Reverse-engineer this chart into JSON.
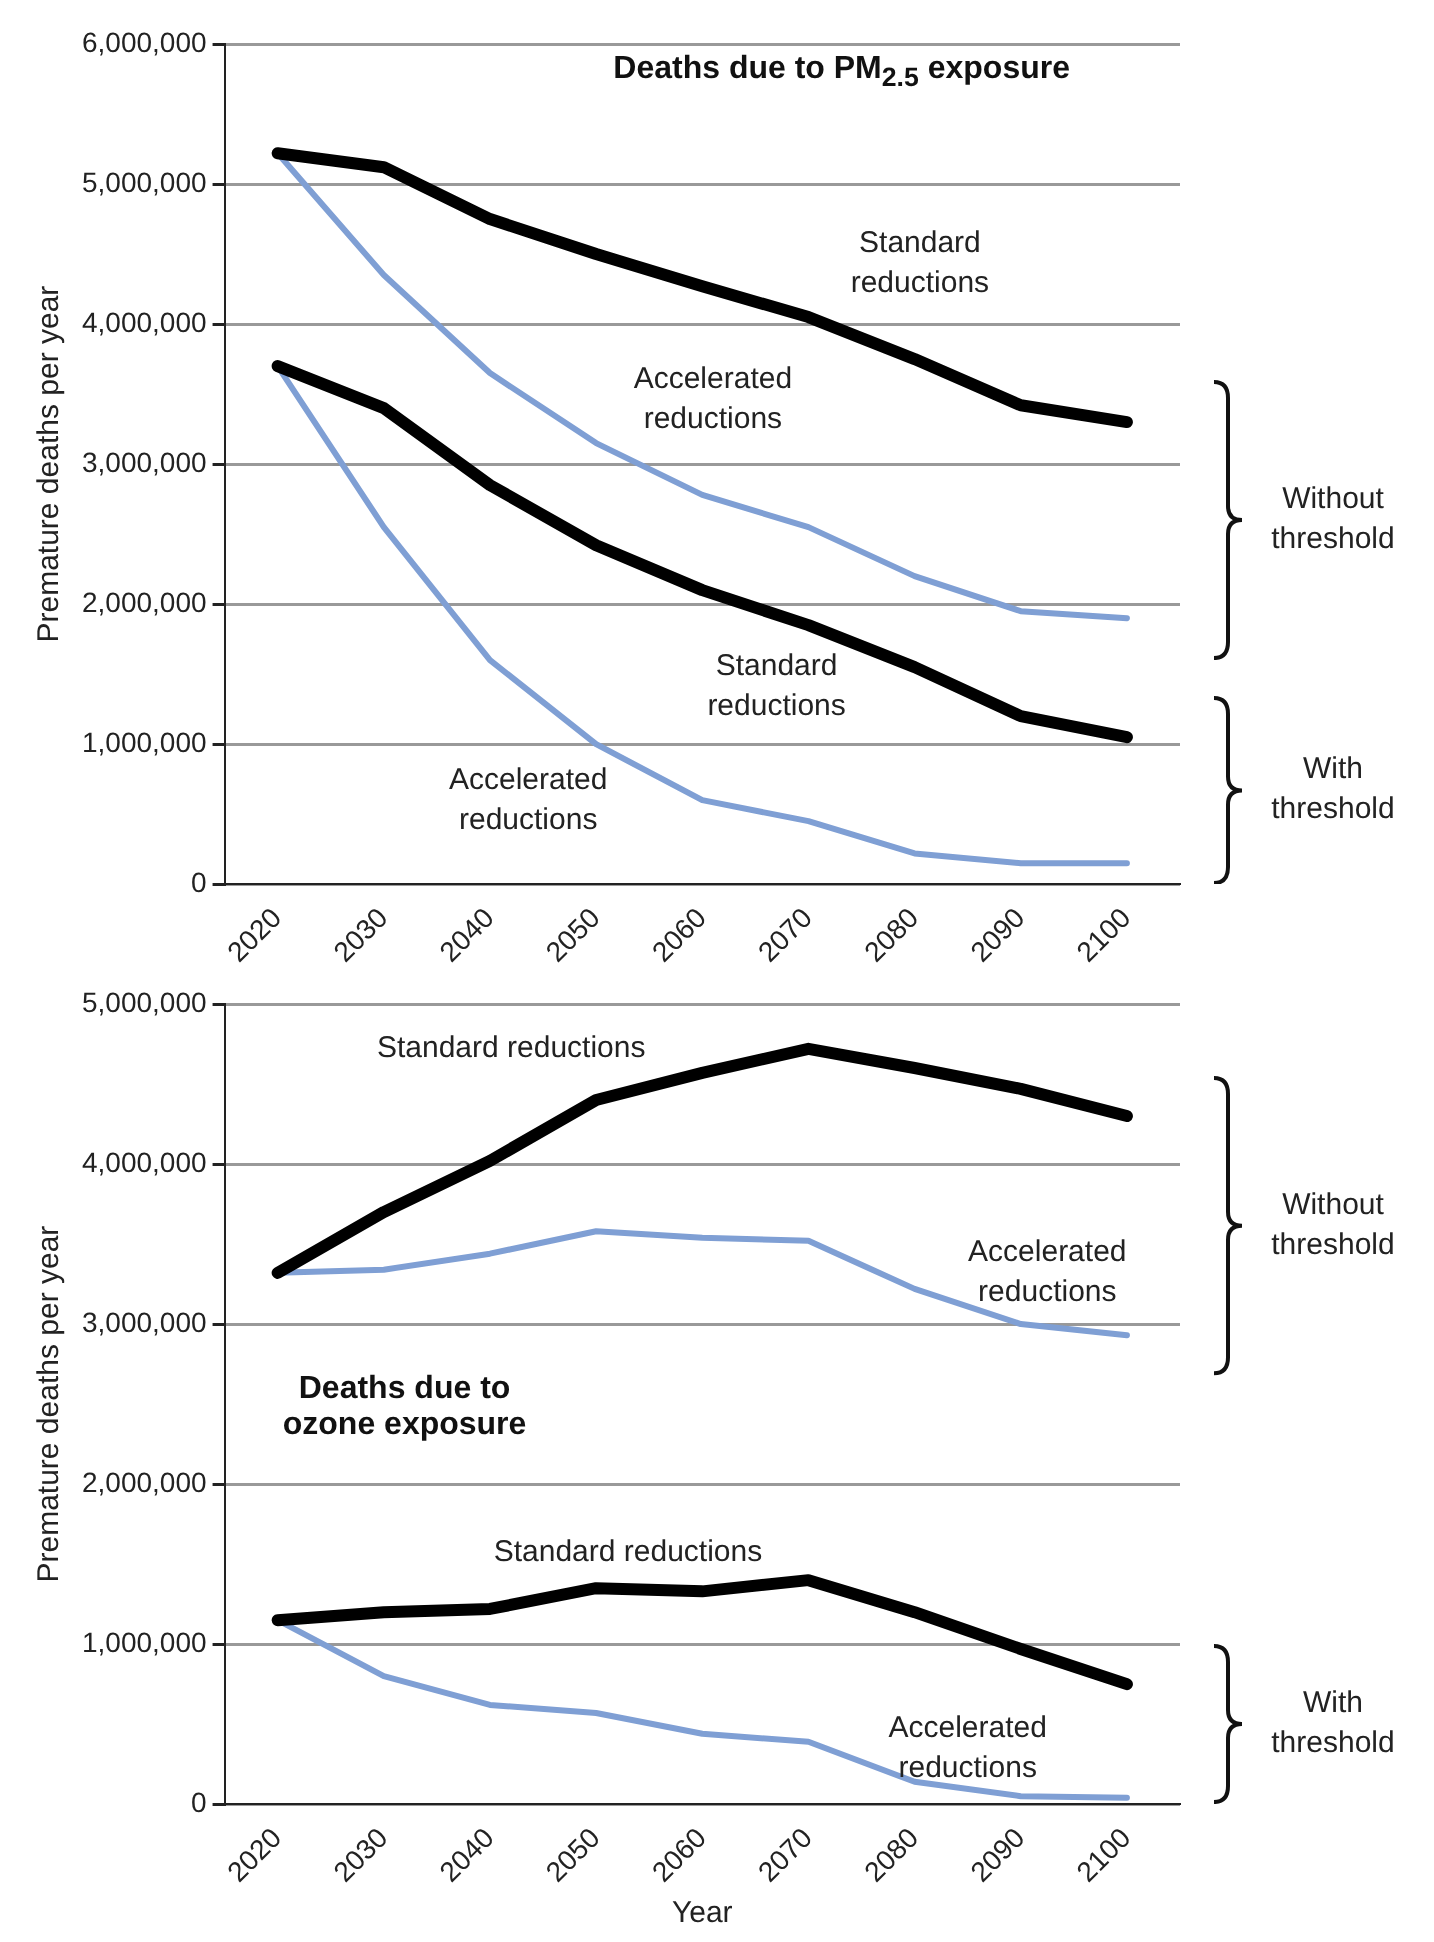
{
  "chart_data": [
    {
      "type": "line",
      "title": "Deaths due to PM$_{2.5}$ exposure",
      "ylabel": "Premature deaths per year",
      "categories": [
        "2020",
        "2030",
        "2040",
        "2050",
        "2060",
        "2070",
        "2080",
        "2090",
        "2100"
      ],
      "ylim": [
        0,
        6000000
      ],
      "yticks": [
        {
          "value": 0,
          "label": "0"
        },
        {
          "value": 1000000,
          "label": "1,000,000"
        },
        {
          "value": 2000000,
          "label": "2,000,000"
        },
        {
          "value": 3000000,
          "label": "3,000,000"
        },
        {
          "value": 4000000,
          "label": "4,000,000"
        },
        {
          "value": 5000000,
          "label": "5,000,000"
        },
        {
          "value": 6000000,
          "label": "6,000,000"
        }
      ],
      "grid": "y",
      "series": [
        {
          "name": "Standard reductions",
          "color": "#000000",
          "values": [
            5220000,
            5120000,
            4750000,
            4500000,
            4270000,
            4050000,
            3750000,
            3420000,
            3300000
          ]
        },
        {
          "name": "Accelerated reductions",
          "color": "#7f9fd4",
          "values": [
            5220000,
            4350000,
            3650000,
            3150000,
            2780000,
            2550000,
            2200000,
            1950000,
            1900000
          ]
        },
        {
          "name": "Standard reductions",
          "color": "#000000",
          "values": [
            3700000,
            3400000,
            2850000,
            2420000,
            2100000,
            1850000,
            1550000,
            1200000,
            1050000
          ]
        },
        {
          "name": "Accelerated reductions",
          "color": "#7f9fd4",
          "values": [
            3700000,
            2550000,
            1600000,
            1000000,
            600000,
            450000,
            220000,
            150000,
            150000
          ]
        }
      ],
      "annotations": [
        "Without threshold",
        "With threshold"
      ]
    },
    {
      "type": "line",
      "title": "Deaths due to ozone exposure",
      "ylabel": "Premature deaths per year",
      "xlabel": "Year",
      "categories": [
        "2020",
        "2030",
        "2040",
        "2050",
        "2060",
        "2070",
        "2080",
        "2090",
        "2100"
      ],
      "ylim": [
        0,
        5000000
      ],
      "yticks": [
        {
          "value": 0,
          "label": "0"
        },
        {
          "value": 1000000,
          "label": "1,000,000"
        },
        {
          "value": 2000000,
          "label": "2,000,000"
        },
        {
          "value": 3000000,
          "label": "3,000,000"
        },
        {
          "value": 4000000,
          "label": "4,000,000"
        },
        {
          "value": 5000000,
          "label": "5,000,000"
        }
      ],
      "grid": "y",
      "series": [
        {
          "name": "Standard reductions",
          "color": "#000000",
          "values": [
            3320000,
            3700000,
            4020000,
            4400000,
            4570000,
            4720000,
            4600000,
            4470000,
            4300000
          ]
        },
        {
          "name": "Accelerated reductions",
          "color": "#7f9fd4",
          "values": [
            3320000,
            3340000,
            3440000,
            3580000,
            3540000,
            3520000,
            3220000,
            3000000,
            2930000
          ]
        },
        {
          "name": "Standard reductions",
          "color": "#000000",
          "values": [
            1150000,
            1200000,
            1220000,
            1350000,
            1330000,
            1400000,
            1200000,
            970000,
            750000
          ]
        },
        {
          "name": "Accelerated reductions",
          "color": "#7f9fd4",
          "values": [
            1150000,
            800000,
            620000,
            570000,
            440000,
            390000,
            140000,
            50000,
            40000
          ]
        }
      ],
      "annotations": [
        "Without threshold",
        "With threshold"
      ]
    }
  ]
}
